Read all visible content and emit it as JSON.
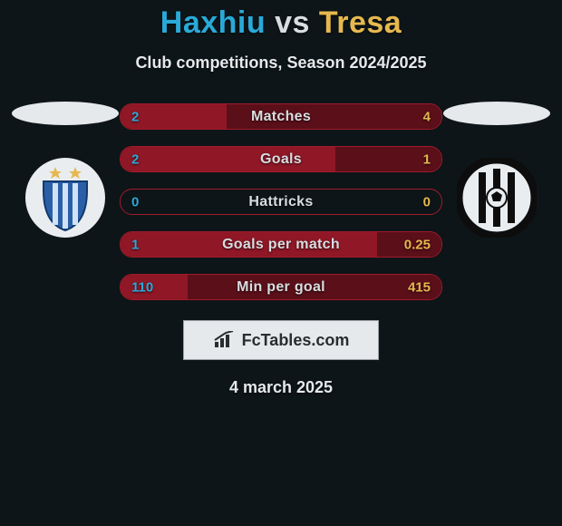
{
  "background_color": "#0d1518",
  "title": {
    "player1": "Haxhiu",
    "vs": "vs",
    "player2": "Tresa",
    "player1_color": "#2aa9d8",
    "vs_color": "#d7dde0",
    "player2_color": "#e6b84f",
    "fontsize": 34
  },
  "subtitle": {
    "text": "Club competitions, Season 2024/2025",
    "color": "#e6e9eb",
    "fontsize": 18
  },
  "side_shadow": {
    "color": "#e6e9eb"
  },
  "left_club": {
    "name": "kf-tirana-logo",
    "bg": "#e9edf0",
    "star_color": "#e6b84f",
    "shield_fill": "#2a5fa8",
    "shield_stripe": "#cfe2f6"
  },
  "right_club": {
    "name": "kf-laci-logo",
    "bg": "#e9edf0",
    "ring_color": "#0d0d0d",
    "stripe_color": "#0d0d0d",
    "ball_color": "#e9edf0"
  },
  "bars": {
    "border_color": "#a21a2c",
    "left_fill_color": "#8f1726",
    "right_fill_color": "#5a0f19",
    "value_left_color": "#2aa9d8",
    "value_right_color": "#e6b84f",
    "label_color": "#d7dde0",
    "track_color": "#0d1518",
    "rows": [
      {
        "label": "Matches",
        "left": "2",
        "right": "4",
        "left_pct": 33,
        "right_pct": 67
      },
      {
        "label": "Goals",
        "left": "2",
        "right": "1",
        "left_pct": 67,
        "right_pct": 33
      },
      {
        "label": "Hattricks",
        "left": "0",
        "right": "0",
        "left_pct": 0,
        "right_pct": 0
      },
      {
        "label": "Goals per match",
        "left": "1",
        "right": "0.25",
        "left_pct": 80,
        "right_pct": 20
      },
      {
        "label": "Min per goal",
        "left": "110",
        "right": "415",
        "left_pct": 21,
        "right_pct": 79
      }
    ]
  },
  "brand": {
    "text": "FcTables.com",
    "text_color": "#2a2d30",
    "box_bg": "#e6e9eb",
    "box_border": "#9aa0a6",
    "icon_color": "#2a2d30"
  },
  "date": {
    "text": "4 march 2025",
    "color": "#e6e9eb",
    "fontsize": 18
  }
}
